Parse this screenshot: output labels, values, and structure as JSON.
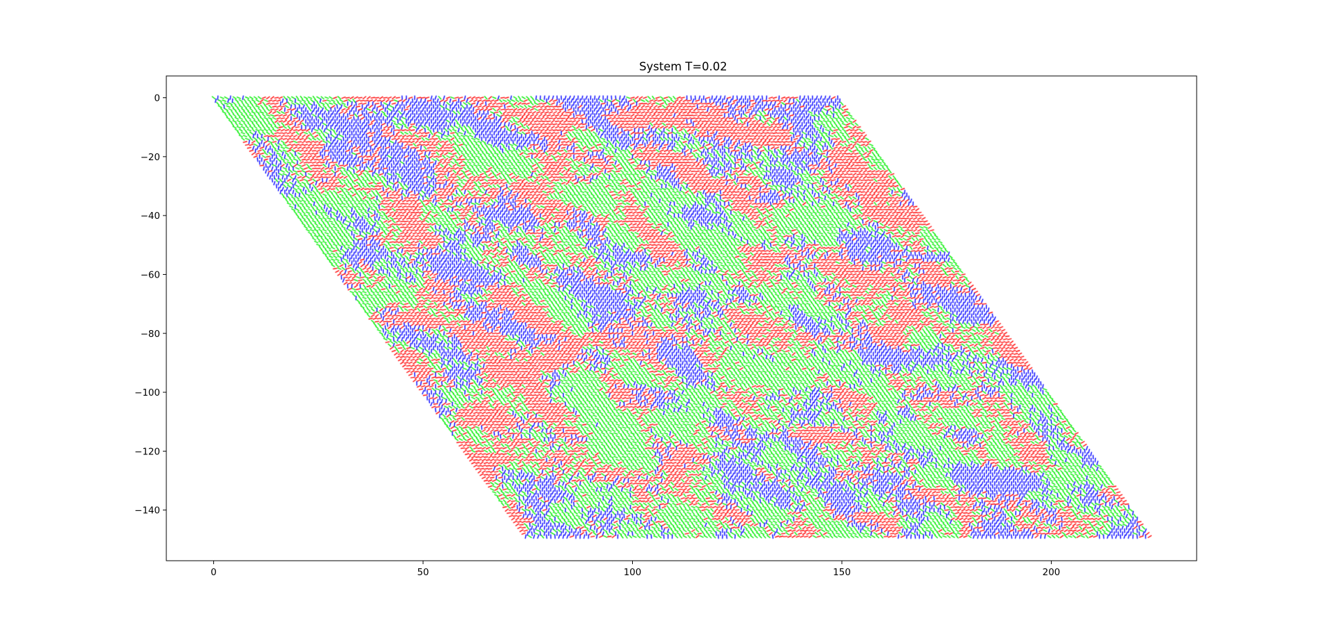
{
  "chart_data": {
    "type": "scatter",
    "title": "System T=0.02",
    "xlabel": "",
    "ylabel": "",
    "xlim": [
      -11.3,
      234.7
    ],
    "ylim": [
      -157.2,
      7.4
    ],
    "x_ticks": [
      0,
      50,
      100,
      150,
      200
    ],
    "y_ticks": [
      0,
      -20,
      -40,
      -60,
      -80,
      -100,
      -120,
      -140
    ],
    "grid": false,
    "legend": "none",
    "lattice": {
      "kind": "triangular",
      "columns": 150,
      "rows": 150,
      "x_spacing": 1.0,
      "row_x_shift": 0.5,
      "row_y_step": -1.0,
      "corners": [
        [
          0,
          0
        ],
        [
          150,
          0
        ],
        [
          224,
          -149
        ],
        [
          74,
          -149
        ]
      ]
    },
    "series": [
      {
        "name": "",
        "color": "#ff0000"
      },
      {
        "name": "",
        "color": "#00ee00"
      },
      {
        "name": "",
        "color": "#0000ff"
      }
    ]
  }
}
